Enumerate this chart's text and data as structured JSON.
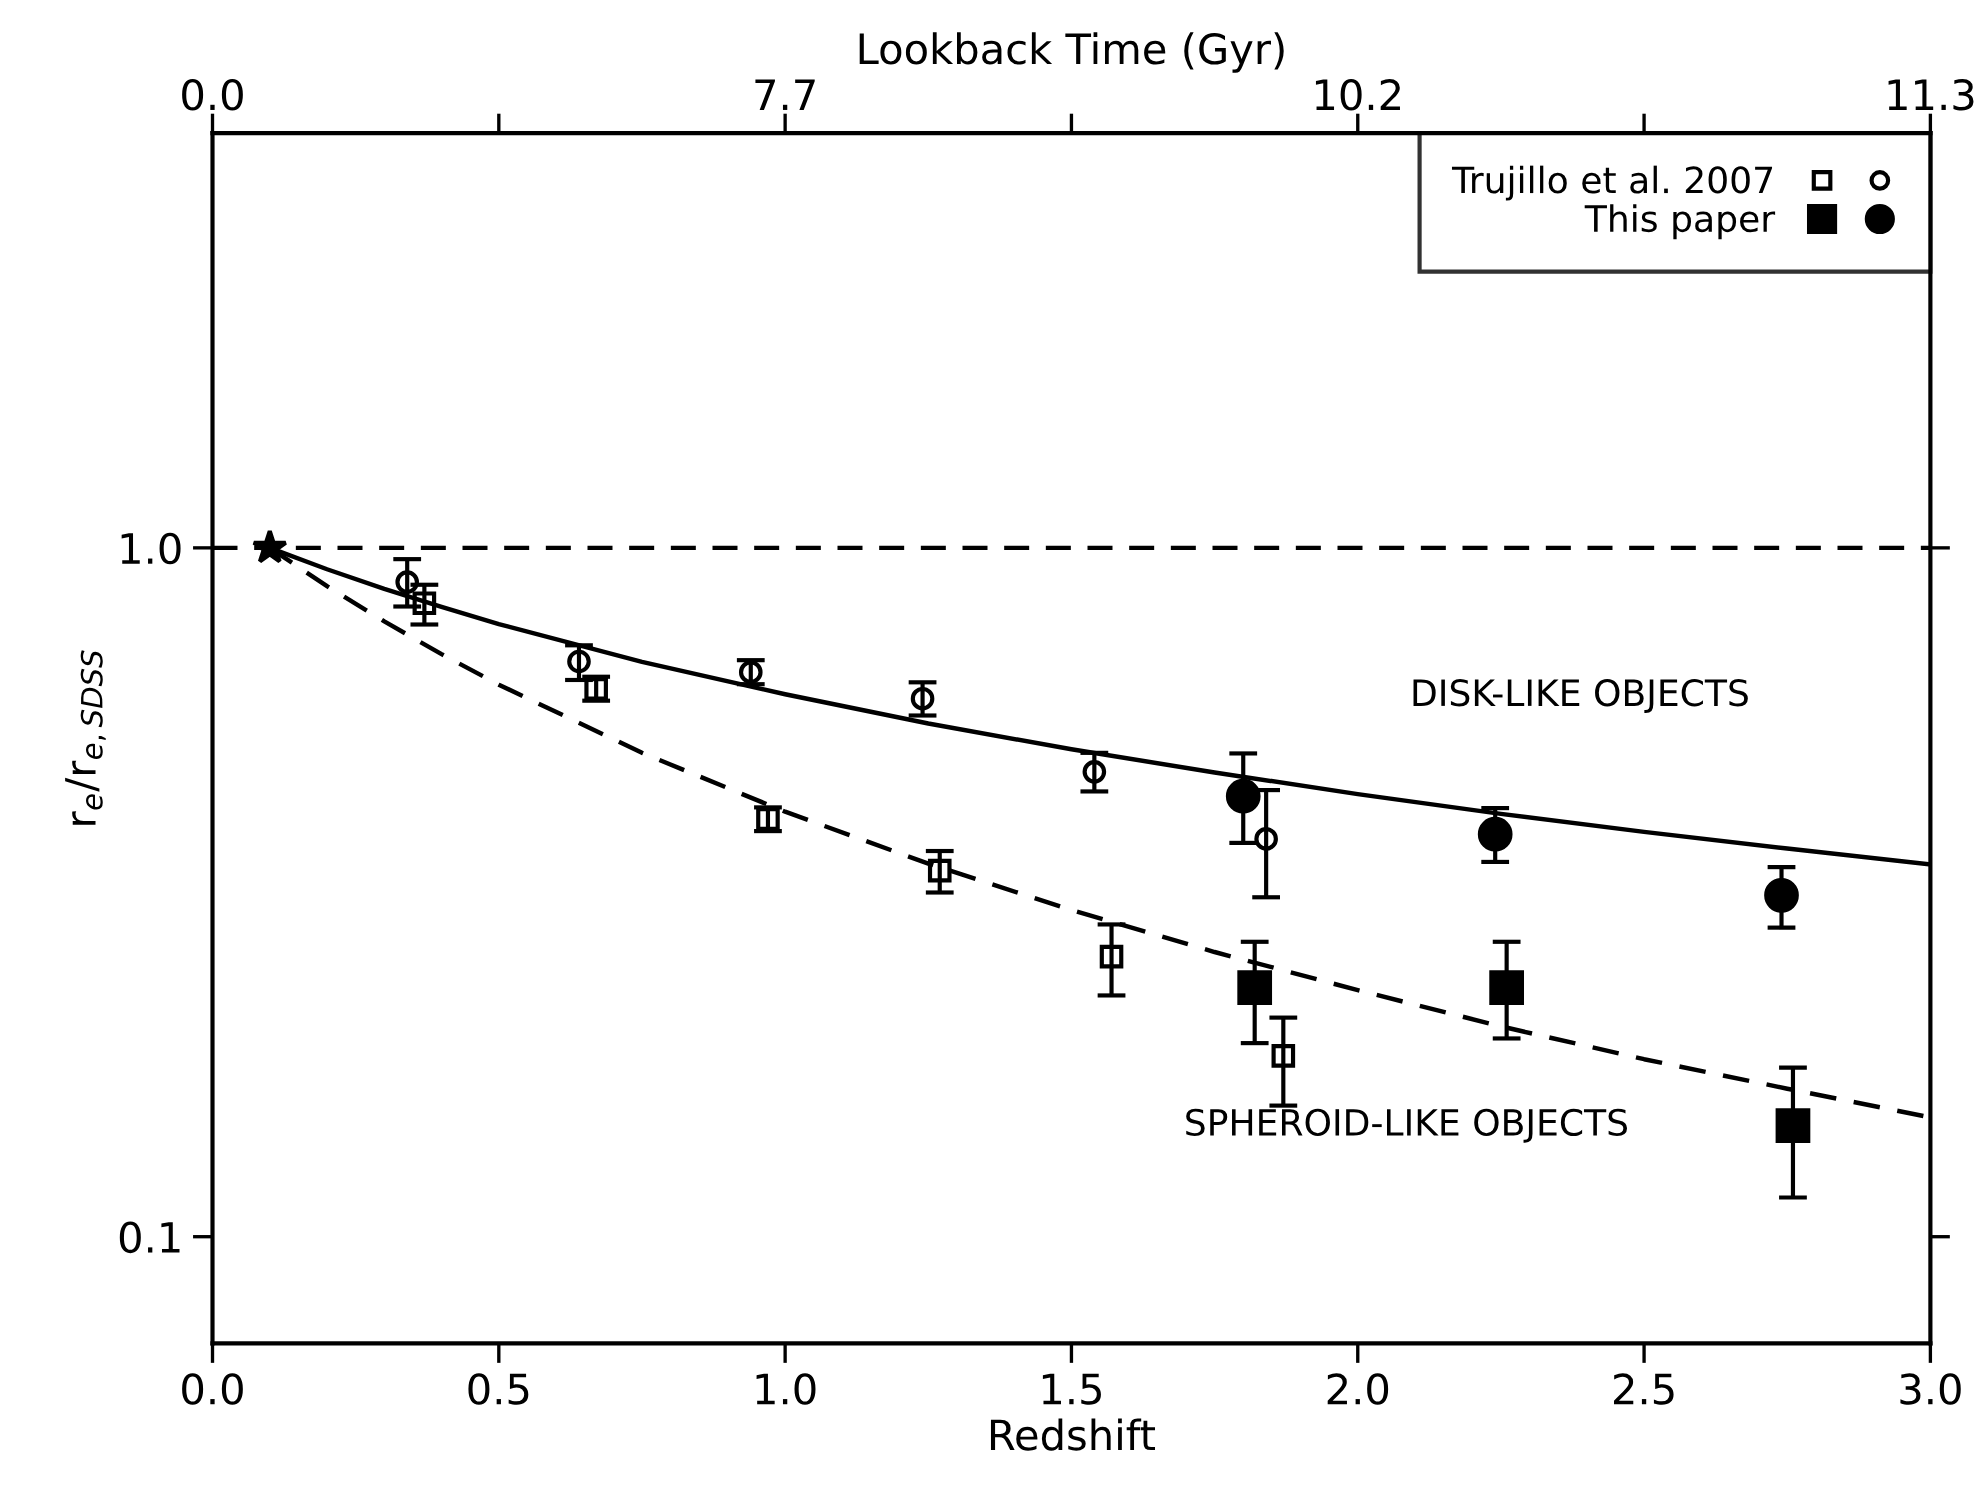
{
  "chart_data": {
    "type": "scatter",
    "xlabel": "Redshift",
    "ylabel": "r$_{e}$/r$_{e,SDSS}$",
    "x2label": "Lookback Time (Gyr)",
    "xlim": [
      0,
      3
    ],
    "xticks": [
      {
        "value": 0,
        "label": "0.0"
      },
      {
        "value": 0.5,
        "label": "0.5"
      },
      {
        "value": 1,
        "label": "1.0"
      },
      {
        "value": 1.5,
        "label": "1.5"
      },
      {
        "value": 2,
        "label": "2.0"
      },
      {
        "value": 2.5,
        "label": "2.5"
      },
      {
        "value": 3,
        "label": "3.0"
      }
    ],
    "log": "y",
    "ylim": [
      0.07,
      4
    ],
    "yticks": [
      {
        "value": 0.1,
        "label": "0.1"
      },
      {
        "value": 1,
        "label": "1.0"
      }
    ],
    "grid": false,
    "legend": "top right",
    "ref_lines": [
      {
        "axis": "y",
        "value": 1,
        "color": "#000000",
        "line_style": "dashed"
      }
    ],
    "annotations": [
      "DISK-LIKE OBJECTS",
      "SPHEROID-LIKE OBJECTS",
      "0.0",
      "7.7",
      "10.2",
      "11.3"
    ],
    "series": [
      {
        "name": "Trujillo et al. 2007",
        "marker": "square",
        "color": "#000000",
        "x": [
          0.37,
          0.67,
          0.97,
          1.27,
          1.57,
          1.87
        ],
        "values": [
          0.831,
          0.624,
          0.404,
          0.34,
          0.255,
          0.183
        ],
        "errors": [
          [
            0.774,
            0.884
          ],
          [
            0.6,
            0.65
          ],
          [
            0.388,
            0.42
          ],
          [
            0.316,
            0.363
          ],
          [
            0.224,
            0.284
          ],
          [
            0.155,
            0.208
          ]
        ]
      },
      {
        "marker": "circle",
        "color": "#000000",
        "x": [
          0.34,
          0.64,
          0.94,
          1.24,
          1.54,
          1.84
        ],
        "values": [
          0.892,
          0.684,
          0.66,
          0.604,
          0.473,
          0.378
        ],
        "errors": [
          [
            0.822,
            0.963
          ],
          [
            0.643,
            0.722
          ],
          [
            0.634,
            0.687
          ],
          [
            0.571,
            0.638
          ],
          [
            0.443,
            0.504
          ],
          [
            0.311,
            0.445
          ]
        ]
      },
      {
        "name": "This paper",
        "marker": "square",
        "color": "#000000",
        "x": [
          1.82,
          2.26,
          2.76
        ],
        "values": [
          0.23,
          0.23,
          0.145
        ],
        "errors": [
          [
            0.191,
            0.268
          ],
          [
            0.194,
            0.268
          ],
          [
            0.114,
            0.176
          ]
        ]
      },
      {
        "marker": "circle",
        "color": "#000000",
        "x": [
          1.8,
          2.24,
          2.74
        ],
        "values": [
          0.436,
          0.384,
          0.313
        ],
        "errors": [
          [
            0.373,
            0.503
          ],
          [
            0.35,
            0.419
          ],
          [
            0.281,
            0.344
          ]
        ]
      },
      {
        "marker": "star",
        "color": "#000000",
        "x": [
          0.1
        ],
        "values": [
          1.0
        ]
      },
      {
        "type": "line",
        "line_style": "solid",
        "marker": "none",
        "color": "#000000",
        "x": [
          0.1,
          0.2,
          0.3,
          0.4,
          0.5,
          0.75,
          1.0,
          1.25,
          1.5,
          1.75,
          2.0,
          2.25,
          2.5,
          2.75,
          3.0
        ],
        "values": [
          1.0,
          0.931,
          0.872,
          0.821,
          0.775,
          0.683,
          0.613,
          0.556,
          0.51,
          0.472,
          0.439,
          0.411,
          0.387,
          0.366,
          0.347
        ]
      },
      {
        "type": "line",
        "line_style": "dashed",
        "marker": "none",
        "color": "#000000",
        "x": [
          0.1,
          0.2,
          0.3,
          0.4,
          0.5,
          0.75,
          1.0,
          1.25,
          1.5,
          1.75,
          2.0,
          2.25,
          2.5,
          2.75,
          3.0
        ],
        "values": [
          1.0,
          0.88,
          0.782,
          0.701,
          0.633,
          0.504,
          0.414,
          0.348,
          0.298,
          0.259,
          0.228,
          0.202,
          0.181,
          0.164,
          0.149
        ]
      }
    ]
  }
}
